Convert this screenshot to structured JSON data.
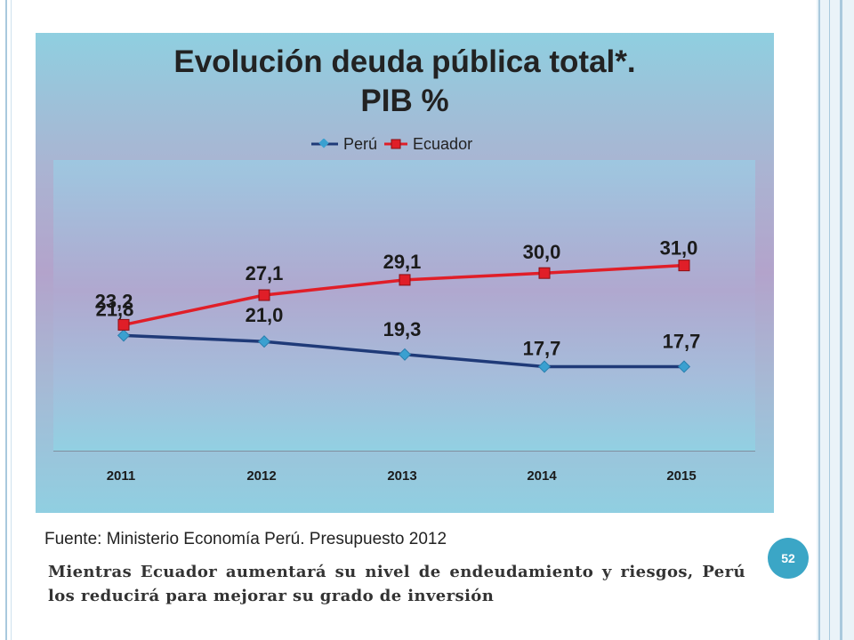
{
  "slide": {
    "source": "Fuente: Ministerio Economía Perú. Presupuesto 2012",
    "caption": "Mientras Ecuador aumentará  su nivel de endeudamiento y riesgos, Perú los reducirá para mejorar su grado de inversión",
    "page_number": "52"
  },
  "colors": {
    "peru": "#1f3a78",
    "peru_marker": "#3aa0d0",
    "ecuador": "#e01e28"
  },
  "chart_data": {
    "type": "line",
    "title_line1": "Evolución deuda pública total*.",
    "title_line2": "PIB %",
    "categories": [
      "2011",
      "2012",
      "2013",
      "2014",
      "2015"
    ],
    "series": [
      {
        "name": "Perú",
        "values": [
          21.8,
          21.0,
          19.3,
          17.7,
          17.7
        ],
        "labels": [
          "21,8",
          "21,0",
          "19,3",
          "17,7",
          "17,7"
        ]
      },
      {
        "name": "Ecuador",
        "values": [
          23.2,
          27.1,
          29.1,
          30.0,
          31.0
        ],
        "labels": [
          "23,2",
          "27,1",
          "29,1",
          "30,0",
          "31,0"
        ]
      }
    ],
    "legend_position": "top-center",
    "grid": false
  }
}
